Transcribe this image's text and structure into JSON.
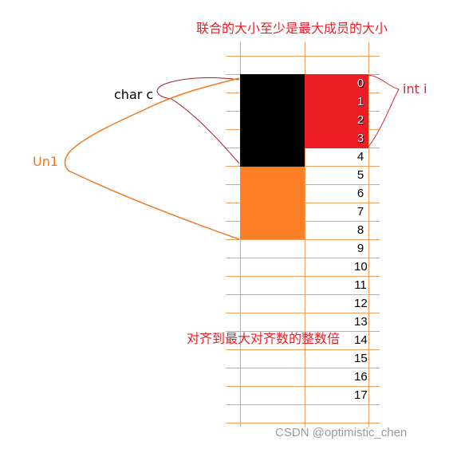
{
  "title": "联合的大小至少是最大成员的大小",
  "note": "对齐到最大对齐数的整数倍",
  "labels": {
    "char_c": "char c",
    "int_i": "int i",
    "union": "Un1"
  },
  "indices": [
    "0",
    "1",
    "2",
    "3",
    "4",
    "5",
    "6",
    "7",
    "8",
    "9",
    "10",
    "11",
    "12",
    "13",
    "14",
    "15",
    "16",
    "17"
  ],
  "watermark": "CSDN @optimistic_chen",
  "colors": {
    "char_fill": "#000000",
    "int_fill": "#ee1c24",
    "union_fill": "#ff7f27",
    "title_text": "#e8202a",
    "grid": "#f0a060"
  }
}
